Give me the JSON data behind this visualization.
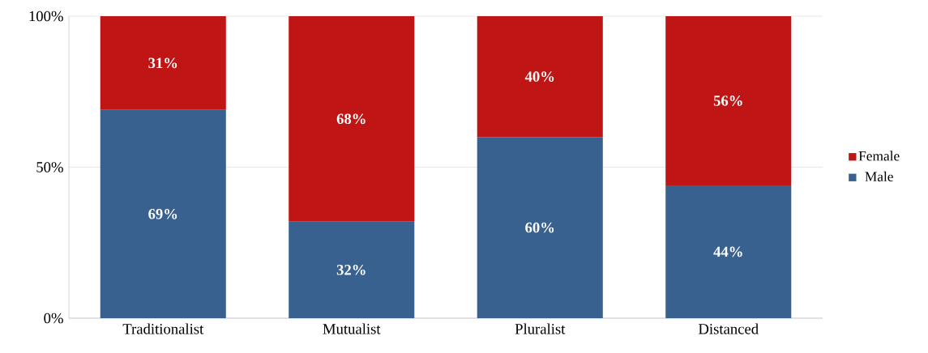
{
  "chart_data": {
    "type": "bar",
    "stacked": true,
    "categories": [
      "Traditionalist",
      "Mutualist",
      "Pluralist",
      "Distanced"
    ],
    "series": [
      {
        "name": "Male",
        "color": "#386190",
        "values": [
          69,
          32,
          60,
          44
        ],
        "value_labels": [
          "69%",
          "32%",
          "60%",
          "44%"
        ]
      },
      {
        "name": "Female",
        "color": "#c01515",
        "values": [
          31,
          68,
          40,
          56
        ],
        "value_labels": [
          "31%",
          "68%",
          "40%",
          "56%"
        ]
      }
    ],
    "ylim": [
      0,
      100
    ],
    "yticks": [
      {
        "value": 0,
        "label": "0%"
      },
      {
        "value": 50,
        "label": "50%"
      },
      {
        "value": 100,
        "label": "100%"
      }
    ],
    "grid": "y",
    "legend": "right"
  }
}
